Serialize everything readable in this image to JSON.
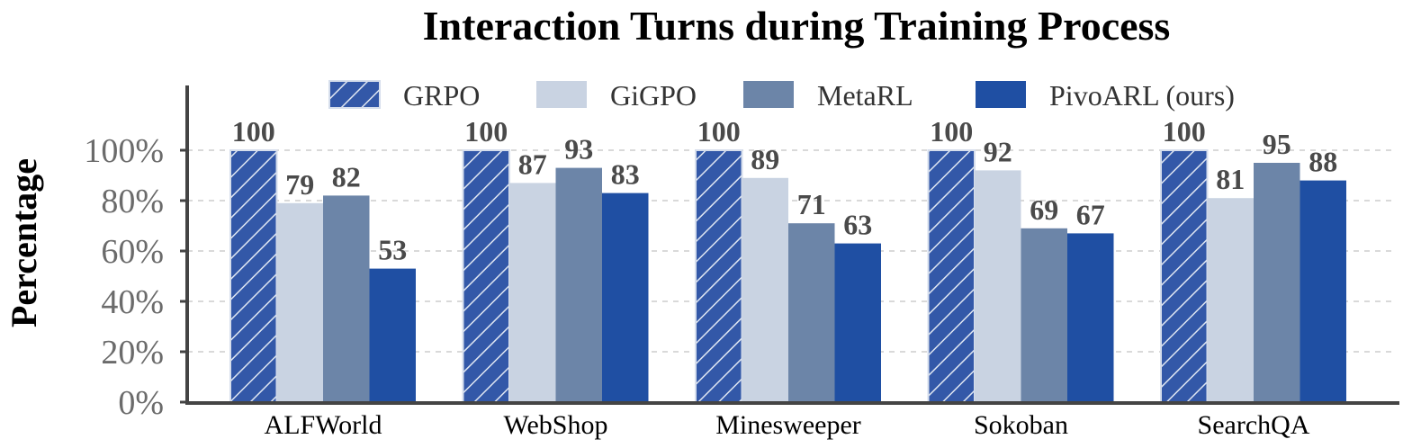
{
  "chart_data": {
    "type": "bar",
    "title": "Interaction Turns during Training Process",
    "ylabel": "Percentage",
    "xlabel": "",
    "ylim": [
      0,
      100
    ],
    "yticks": [
      "0%",
      "20%",
      "40%",
      "60%",
      "80%",
      "100%"
    ],
    "ytick_values": [
      0,
      20,
      40,
      60,
      80,
      100
    ],
    "grid": "horizontal dashed",
    "legend_placement": "top",
    "categories": [
      "ALFWorld",
      "WebShop",
      "Minesweeper",
      "Sokoban",
      "SearchQA"
    ],
    "series": [
      {
        "name": "GRPO",
        "values": [
          100,
          100,
          100,
          100,
          100
        ],
        "color": "#3358a8",
        "pattern": "hatch"
      },
      {
        "name": "GiGPO",
        "values": [
          79,
          87,
          89,
          92,
          81
        ],
        "color": "#c9d3e2",
        "pattern": "solid"
      },
      {
        "name": "MetaRL",
        "values": [
          82,
          93,
          71,
          69,
          95
        ],
        "color": "#6c85a8",
        "pattern": "solid"
      },
      {
        "name": "PivoARL (ours)",
        "values": [
          53,
          83,
          63,
          67,
          88
        ],
        "color": "#1f4fa3",
        "pattern": "solid"
      }
    ]
  }
}
